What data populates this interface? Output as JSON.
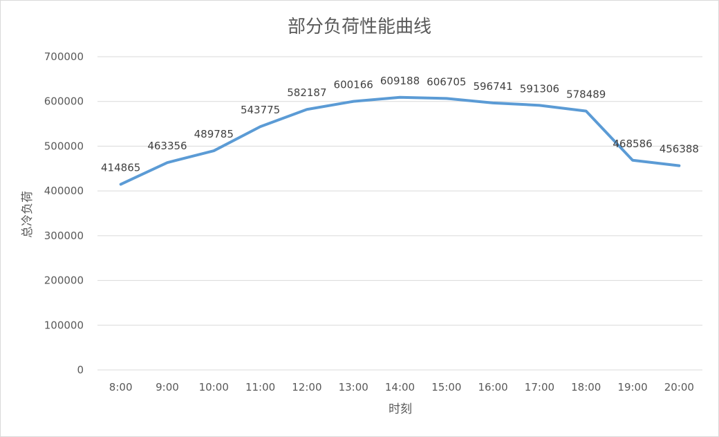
{
  "chart_data": {
    "type": "line",
    "title": "部分负荷性能曲线",
    "xlabel": "时刻",
    "ylabel": "总冷负荷",
    "categories": [
      "8:00",
      "9:00",
      "10:00",
      "11:00",
      "12:00",
      "13:00",
      "14:00",
      "15:00",
      "16:00",
      "17:00",
      "18:00",
      "19:00",
      "20:00"
    ],
    "series": [
      {
        "values": [
          414865,
          463356,
          489785,
          543775,
          582187,
          600166,
          609188,
          606705,
          596741,
          591306,
          578489,
          468586,
          456388
        ],
        "color": "#5b9bd5"
      }
    ],
    "data_labels": [
      "414865",
      "463356",
      "489785",
      "543775",
      "582187",
      "600166",
      "609188",
      "606705",
      "596741",
      "591306",
      "578489",
      "468586",
      "456388"
    ],
    "highlight_index": 6,
    "highlight_color": "#ff0000",
    "yticks": [
      "0",
      "100000",
      "200000",
      "300000",
      "400000",
      "500000",
      "600000",
      "700000"
    ],
    "ylim": [
      0,
      700000
    ],
    "grid": true,
    "legend": "none"
  }
}
